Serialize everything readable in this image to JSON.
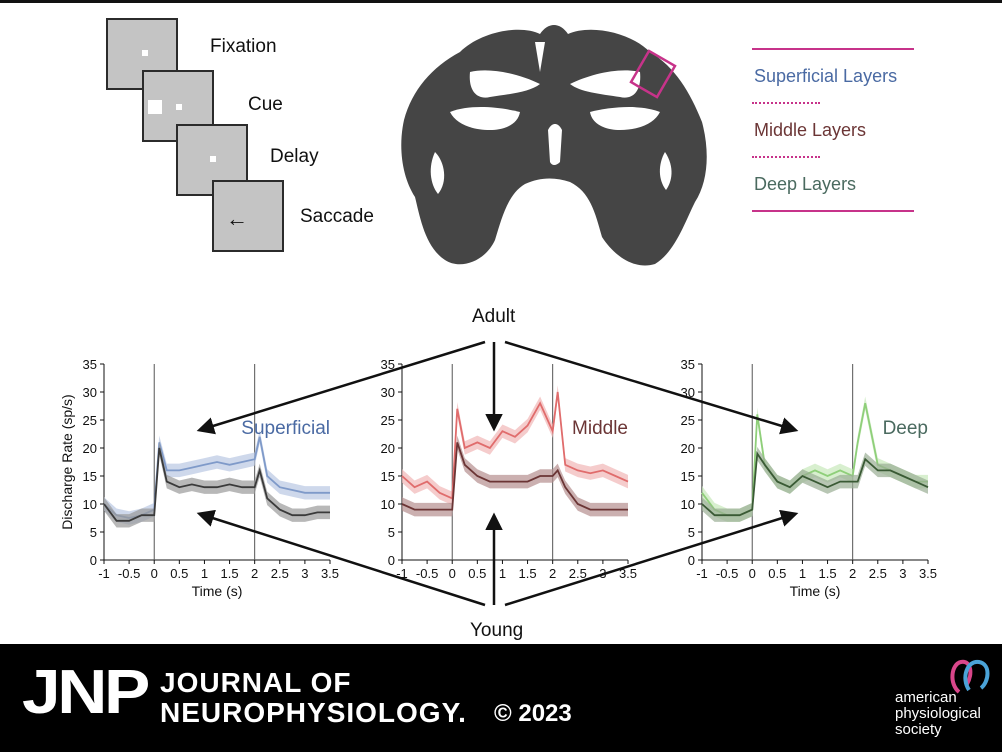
{
  "task": {
    "steps": [
      "Fixation",
      "Cue",
      "Delay",
      "Saccade"
    ]
  },
  "legend": {
    "items": [
      {
        "label": "Superficial Layers",
        "color": "#4a6aa3"
      },
      {
        "label": "Middle Layers",
        "color": "#6b3535"
      },
      {
        "label": "Deep Layers",
        "color": "#4a6a5f"
      }
    ],
    "line_color": "#c7338a"
  },
  "annotations": {
    "adult": "Adult",
    "young": "Young"
  },
  "footer": {
    "logo": "JNP",
    "journal_line1": "JOURNAL OF",
    "journal_line2": "NEUROPHYSIOLOGY.",
    "copyright": "© 2023",
    "society": "american physiological society"
  },
  "chart_data": [
    {
      "type": "line",
      "title": "Superficial",
      "title_color": "#4a6aa3",
      "xlabel": "Time (s)",
      "ylabel": "Discharge Rate (sp/s)",
      "xlim": [
        -1,
        3.5
      ],
      "ylim": [
        0,
        35
      ],
      "xticks": [
        "-1",
        "-0.5",
        "0",
        "0.5",
        "1",
        "1.5",
        "2",
        "2.5",
        "3",
        "3.5"
      ],
      "yticks": [
        "0",
        "5",
        "10",
        "15",
        "20",
        "25",
        "30",
        "35"
      ],
      "vlines": [
        0,
        2
      ],
      "x": [
        -1,
        -0.75,
        -0.5,
        -0.25,
        0,
        0.1,
        0.25,
        0.5,
        0.75,
        1,
        1.25,
        1.5,
        1.75,
        2,
        2.1,
        2.25,
        2.5,
        2.75,
        3,
        3.25,
        3.5
      ],
      "series": [
        {
          "color": "#7f9ac9",
          "band": "#b9c8e3",
          "values": [
            10,
            8,
            7.5,
            8,
            9,
            21,
            16,
            16,
            16.5,
            17,
            17.5,
            17,
            17.5,
            18,
            22,
            15,
            13,
            12.5,
            12,
            12,
            12
          ]
        },
        {
          "color": "#3a3a3a",
          "band": "#9a9a9a",
          "values": [
            10,
            7,
            7,
            8,
            8,
            20,
            14,
            13,
            13.5,
            13,
            13,
            13.5,
            13,
            13,
            16,
            11,
            9,
            8,
            8,
            8.5,
            8.5
          ]
        }
      ]
    },
    {
      "type": "line",
      "title": "Middle",
      "title_color": "#6b3535",
      "xlabel": "",
      "ylabel": "",
      "xlim": [
        -1,
        3.5
      ],
      "ylim": [
        0,
        35
      ],
      "xticks": [
        "-1",
        "-0.5",
        "0",
        "0.5",
        "1",
        "1.5",
        "2",
        "2.5",
        "3",
        "3.5"
      ],
      "yticks": [
        "0",
        "5",
        "10",
        "15",
        "20",
        "25",
        "30",
        "35"
      ],
      "vlines": [
        0,
        2
      ],
      "x": [
        -1,
        -0.75,
        -0.5,
        -0.25,
        0,
        0.1,
        0.25,
        0.5,
        0.75,
        1,
        1.25,
        1.5,
        1.75,
        2,
        2.1,
        2.25,
        2.5,
        2.75,
        3,
        3.25,
        3.5
      ],
      "series": [
        {
          "color": "#e06c6c",
          "band": "#f1b7b7",
          "values": [
            15,
            13,
            14,
            12,
            11,
            27,
            20,
            21,
            20,
            23,
            22,
            24,
            28,
            23,
            30,
            17,
            16,
            15.5,
            16,
            15,
            14
          ]
        },
        {
          "color": "#6b3535",
          "band": "#b58f8f",
          "values": [
            10,
            9,
            9,
            9,
            9,
            21,
            17,
            15,
            14,
            14,
            14,
            14,
            15,
            15,
            16,
            13,
            10,
            9,
            9,
            9,
            9
          ]
        }
      ]
    },
    {
      "type": "line",
      "title": "Deep",
      "title_color": "#4a6a5f",
      "xlabel": "Time (s)",
      "ylabel": "",
      "xlim": [
        -1,
        3.5
      ],
      "ylim": [
        0,
        35
      ],
      "xticks": [
        "-1",
        "-0.5",
        "0",
        "0.5",
        "1",
        "1.5",
        "2",
        "2.5",
        "3",
        "3.5"
      ],
      "yticks": [
        "0",
        "5",
        "10",
        "15",
        "20",
        "25",
        "30",
        "35"
      ],
      "vlines": [
        0,
        2
      ],
      "x": [
        -1,
        -0.75,
        -0.5,
        -0.25,
        0,
        0.1,
        0.25,
        0.5,
        0.75,
        1,
        1.25,
        1.5,
        1.75,
        2,
        2.1,
        2.25,
        2.5,
        2.75,
        3,
        3.25,
        3.5
      ],
      "series": [
        {
          "color": "#8fcf7a",
          "band": "#c8e8bb",
          "values": [
            12,
            9,
            8,
            8,
            9,
            26,
            17,
            14,
            13,
            15,
            16,
            15,
            16,
            15,
            21,
            28,
            17,
            16,
            15,
            14,
            14
          ]
        },
        {
          "color": "#3a5a35",
          "band": "#9aae94",
          "values": [
            10,
            8,
            8,
            8,
            9,
            19,
            17,
            14,
            13,
            15,
            14,
            13,
            14,
            14,
            14,
            18,
            16,
            16,
            15,
            14,
            13
          ]
        }
      ]
    }
  ]
}
